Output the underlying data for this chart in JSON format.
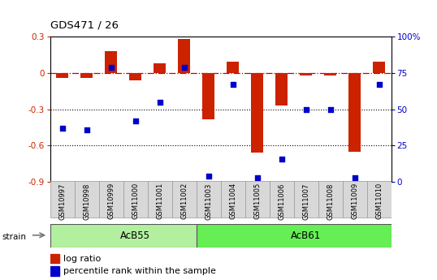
{
  "title": "GDS471 / 26",
  "samples": [
    "GSM10997",
    "GSM10998",
    "GSM10999",
    "GSM11000",
    "GSM11001",
    "GSM11002",
    "GSM11003",
    "GSM11004",
    "GSM11005",
    "GSM11006",
    "GSM11007",
    "GSM11008",
    "GSM11009",
    "GSM11010"
  ],
  "log_ratio": [
    -0.04,
    -0.04,
    0.18,
    -0.06,
    0.08,
    0.28,
    -0.38,
    0.09,
    -0.66,
    -0.27,
    -0.02,
    -0.02,
    -0.65,
    0.09
  ],
  "percentile": [
    37,
    36,
    79,
    42,
    55,
    79,
    4,
    67,
    3,
    16,
    50,
    50,
    3,
    67
  ],
  "groups": [
    {
      "label": "AcB55",
      "start": 0,
      "end": 6
    },
    {
      "label": "AcB61",
      "start": 6,
      "end": 14
    }
  ],
  "group_colors": [
    "#b2f0a0",
    "#66ee55"
  ],
  "ylim_left": [
    -0.9,
    0.3
  ],
  "ylim_right": [
    0,
    100
  ],
  "bar_color": "#cc2200",
  "dot_color": "#0000cc",
  "hline_color": "#cc0000",
  "dotted_line_color": "#000000",
  "bar_width": 0.5,
  "background_color": "#ffffff",
  "legend_items": [
    "log ratio",
    "percentile rank within the sample"
  ]
}
